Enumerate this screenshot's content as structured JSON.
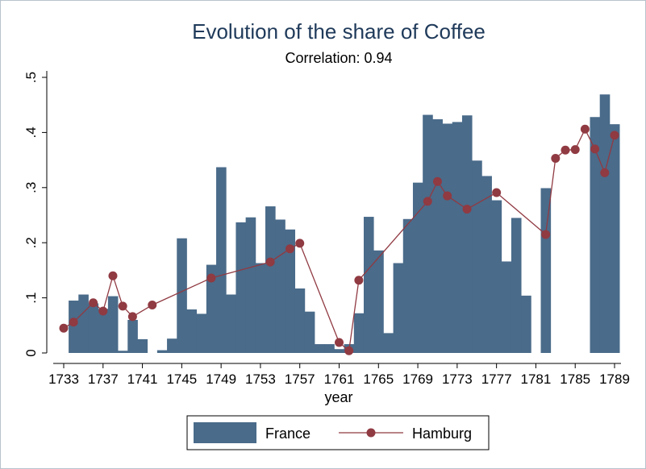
{
  "chart_data": {
    "type": "bar",
    "title": "Evolution of the share of Coffee",
    "subtitle": "Correlation: 0.94",
    "xlabel": "year",
    "ylabel": "",
    "xlim": [
      1733,
      1789
    ],
    "ylim": [
      0,
      0.5
    ],
    "xticks": [
      1733,
      1737,
      1741,
      1745,
      1749,
      1753,
      1757,
      1761,
      1765,
      1769,
      1773,
      1777,
      1781,
      1785,
      1789
    ],
    "yticks": [
      0,
      0.1,
      0.2,
      0.3,
      0.4,
      0.5
    ],
    "ytick_labels": [
      "0",
      ".1",
      ".2",
      ".3",
      ".4",
      ".5"
    ],
    "grid": false,
    "legend_position": "bottom",
    "colors": {
      "France": "#4a6b8a",
      "Hamburg": "#903a42"
    },
    "series": [
      {
        "name": "France",
        "type": "bar",
        "x": [
          1734,
          1735,
          1736,
          1737,
          1738,
          1739,
          1740,
          1741,
          1742,
          1743,
          1744,
          1745,
          1746,
          1747,
          1748,
          1749,
          1750,
          1751,
          1752,
          1753,
          1754,
          1755,
          1756,
          1757,
          1758,
          1759,
          1760,
          1761,
          1762,
          1763,
          1764,
          1765,
          1766,
          1767,
          1768,
          1769,
          1770,
          1771,
          1772,
          1773,
          1774,
          1775,
          1776,
          1777,
          1778,
          1779,
          1780,
          1781,
          1782,
          1783,
          1784,
          1785,
          1786,
          1787,
          1788,
          1789
        ],
        "values": [
          0.095,
          0.106,
          0.09,
          0.08,
          0.103,
          0.004,
          0.06,
          0.025,
          0,
          0.005,
          0.026,
          0.208,
          0.079,
          0.071,
          0.16,
          0.337,
          0.106,
          0.237,
          0.246,
          0.163,
          0.266,
          0.242,
          0.224,
          0.117,
          0.075,
          0.016,
          0.016,
          0.007,
          0.016,
          0.072,
          0.247,
          0.186,
          0.036,
          0.163,
          0.243,
          0.309,
          0.432,
          0.424,
          0.416,
          0.419,
          0.431,
          0.349,
          0.321,
          0.277,
          0.166,
          0.245,
          0.104,
          0,
          0.299,
          0,
          0,
          0,
          0,
          0.428,
          0.469,
          0.415
        ]
      },
      {
        "name": "Hamburg",
        "type": "line",
        "x": [
          1733,
          1734,
          1736,
          1737,
          1738,
          1739,
          1740,
          1742,
          1748,
          1754,
          1756,
          1757,
          1761,
          1762,
          1763,
          1770,
          1771,
          1772,
          1774,
          1777,
          1782,
          1783,
          1784,
          1785,
          1786,
          1787,
          1788,
          1789
        ],
        "values": [
          0.045,
          0.056,
          0.091,
          0.076,
          0.14,
          0.085,
          0.066,
          0.087,
          0.136,
          0.165,
          0.189,
          0.199,
          0.019,
          0.004,
          0.132,
          0.275,
          0.311,
          0.285,
          0.261,
          0.291,
          0.215,
          0.353,
          0.368,
          0.369,
          0.406,
          0.37,
          0.327,
          0.395
        ]
      }
    ]
  }
}
